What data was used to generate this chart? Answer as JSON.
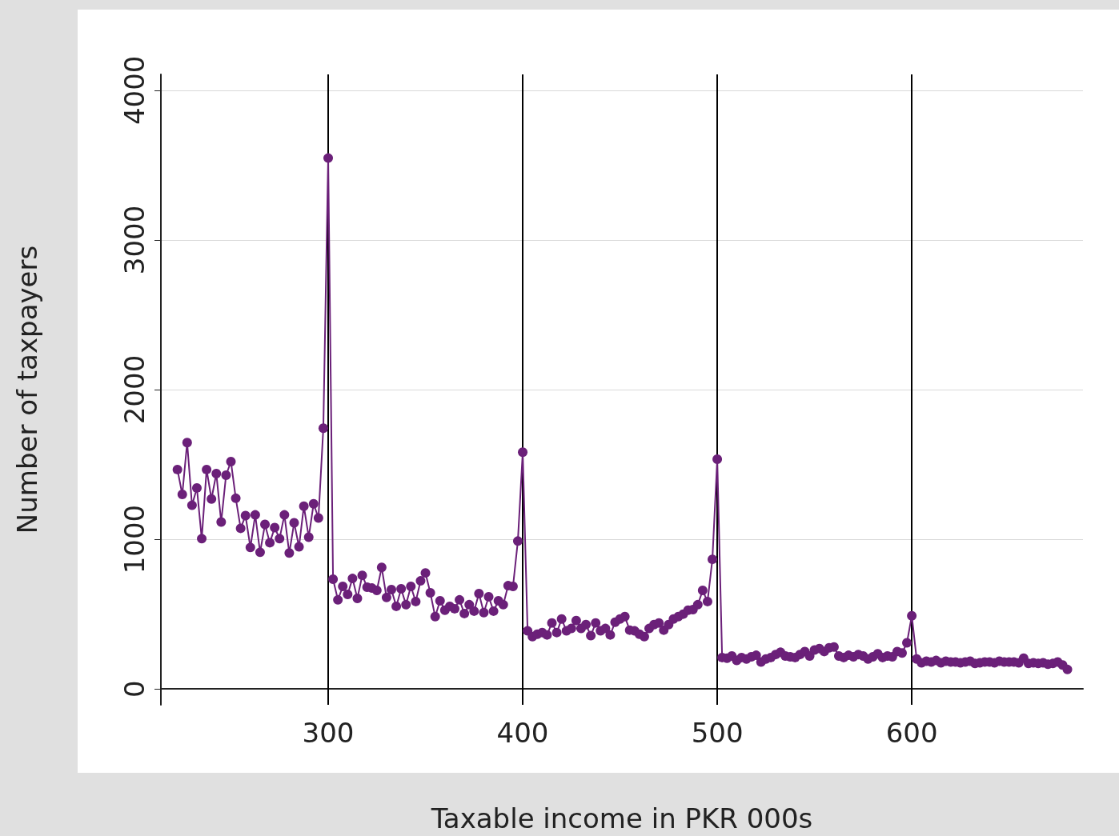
{
  "chart_data": {
    "type": "line",
    "xlabel": "Taxable income in PKR 000s",
    "ylabel": "Number of taxpayers",
    "xlim": [
      214,
      688
    ],
    "xticks": [
      300,
      400,
      500,
      600
    ],
    "ylim": [
      -106,
      4106
    ],
    "yticks": [
      0,
      1000,
      2000,
      3000,
      4000
    ],
    "grid": "y",
    "marker": "circle",
    "line_style": "solid",
    "ref_lines": [
      {
        "axis": "x",
        "value": 300,
        "color": "#000000"
      },
      {
        "axis": "x",
        "value": 400,
        "color": "#000000"
      },
      {
        "axis": "x",
        "value": 500,
        "color": "#000000"
      },
      {
        "axis": "x",
        "value": 600,
        "color": "#000000"
      }
    ],
    "series": [
      {
        "color": "#6b2079",
        "x": [
          222.5,
          225,
          227.5,
          230,
          232.5,
          235,
          237.5,
          240,
          242.5,
          245,
          247.5,
          250,
          252.5,
          255,
          257.5,
          260,
          262.5,
          265,
          267.5,
          270,
          272.5,
          275,
          277.5,
          280,
          282.5,
          285,
          287.5,
          290,
          292.5,
          295,
          297.5,
          300,
          302.5,
          305,
          307.5,
          310,
          312.5,
          315,
          317.5,
          320,
          322.5,
          325,
          327.5,
          330,
          332.5,
          335,
          337.5,
          340,
          342.5,
          345,
          347.5,
          350,
          352.5,
          355,
          357.5,
          360,
          362.5,
          365,
          367.5,
          370,
          372.5,
          375,
          377.5,
          380,
          382.5,
          385,
          387.5,
          390,
          392.5,
          395,
          397.5,
          400,
          402.5,
          405,
          407.5,
          410,
          412.5,
          415,
          417.5,
          420,
          422.5,
          425,
          427.5,
          430,
          432.5,
          435,
          437.5,
          440,
          442.5,
          445,
          447.5,
          450,
          452.5,
          455,
          457.5,
          460,
          462.5,
          465,
          467.5,
          470,
          472.5,
          475,
          477.5,
          480,
          482.5,
          485,
          487.5,
          490,
          492.5,
          495,
          497.5,
          500,
          502.5,
          505,
          507.5,
          510,
          512.5,
          515,
          517.5,
          520,
          522.5,
          525,
          527.5,
          530,
          532.5,
          535,
          537.5,
          540,
          542.5,
          545,
          547.5,
          550,
          552.5,
          555,
          557.5,
          560,
          562.5,
          565,
          567.5,
          570,
          572.5,
          575,
          577.5,
          580,
          582.5,
          585,
          587.5,
          590,
          592.5,
          595,
          597.5,
          600,
          602.5,
          605,
          607.5,
          610,
          612.5,
          615,
          617.5,
          620,
          622.5,
          625,
          627.5,
          630,
          632.5,
          635,
          637.5,
          640,
          642.5,
          645,
          647.5,
          650,
          652.5,
          655,
          657.5,
          660,
          662.5,
          665,
          667.5,
          670,
          672.5,
          675,
          677.5,
          680
        ],
        "values": [
          1466,
          1300,
          1646,
          1227,
          1343,
          1004,
          1466,
          1269,
          1439,
          1115,
          1428,
          1519,
          1274,
          1073,
          1158,
          945,
          1163,
          913,
          1099,
          977,
          1078,
          1004,
          1163,
          908,
          1110,
          950,
          1221,
          1014,
          1237,
          1142,
          1742,
          3547,
          733,
          595,
          685,
          632,
          738,
          605,
          759,
          680,
          674,
          658,
          812,
          611,
          664,
          552,
          669,
          563,
          685,
          584,
          722,
          775,
          642,
          483,
          589,
          526,
          552,
          536,
          595,
          504,
          563,
          520,
          637,
          510,
          616,
          520,
          589,
          563,
          690,
          685,
          988,
          1582,
          388,
          350,
          366,
          377,
          361,
          441,
          377,
          467,
          388,
          404,
          457,
          404,
          430,
          356,
          441,
          388,
          404,
          361,
          446,
          467,
          483,
          393,
          388,
          366,
          350,
          404,
          430,
          441,
          393,
          430,
          467,
          483,
          500,
          526,
          530,
          563,
          658,
          584,
          866,
          1535,
          210,
          205,
          220,
          190,
          210,
          200,
          215,
          225,
          180,
          200,
          210,
          230,
          245,
          220,
          215,
          210,
          230,
          250,
          220,
          260,
          270,
          250,
          275,
          280,
          220,
          210,
          225,
          215,
          230,
          220,
          200,
          215,
          235,
          210,
          220,
          215,
          250,
          240,
          308,
          489,
          200,
          175,
          185,
          180,
          190,
          175,
          185,
          180,
          180,
          175,
          180,
          185,
          170,
          175,
          180,
          180,
          175,
          185,
          180,
          180,
          180,
          175,
          205,
          170,
          175,
          170,
          175,
          165,
          170,
          180,
          160,
          130
        ]
      }
    ]
  }
}
